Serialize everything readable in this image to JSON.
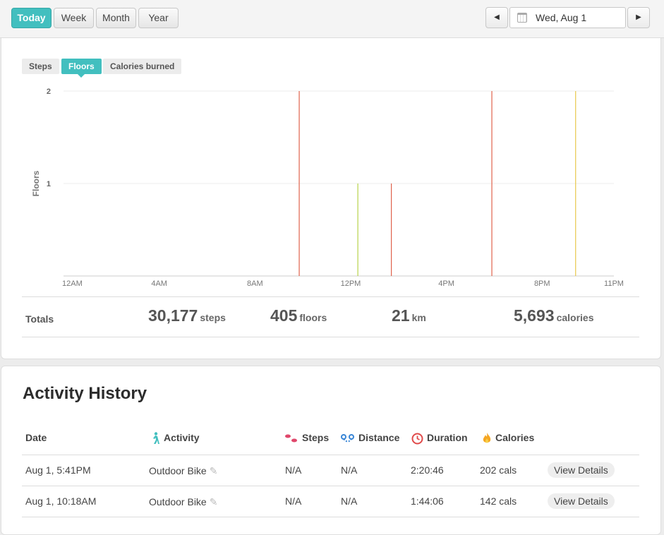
{
  "range_tabs": [
    {
      "label": "Today",
      "active": true
    },
    {
      "label": "Week",
      "active": false
    },
    {
      "label": "Month",
      "active": false
    },
    {
      "label": "Year",
      "active": false
    }
  ],
  "date_nav": {
    "prev": "◀",
    "next": "▶",
    "date": "Wed, Aug 1"
  },
  "metric_tabs": [
    {
      "label": "Steps",
      "active": false
    },
    {
      "label": "Floors",
      "active": true
    },
    {
      "label": "Calories burned",
      "active": false
    }
  ],
  "chart_data": {
    "type": "bar",
    "title": "",
    "ylabel": "Floors",
    "xlabel": "",
    "ylim": [
      0,
      2
    ],
    "yticks": [
      "1",
      "2"
    ],
    "x_tick_labels": [
      "12AM",
      "4AM",
      "8AM",
      "12PM",
      "4PM",
      "8PM",
      "11PM"
    ],
    "x_tick_hours": [
      0,
      4,
      8,
      12,
      16,
      20,
      23
    ],
    "bars": [
      {
        "hour": 9.85,
        "value": 2,
        "color": "#e0624c"
      },
      {
        "hour": 12.3,
        "value": 1,
        "color": "#b8d34a"
      },
      {
        "hour": 13.7,
        "value": 1,
        "color": "#e0624c"
      },
      {
        "hour": 17.9,
        "value": 2,
        "color": "#e0624c"
      },
      {
        "hour": 21.4,
        "value": 2,
        "color": "#e8c84a"
      }
    ]
  },
  "totals": {
    "label": "Totals",
    "steps": {
      "value": "30,177",
      "unit": "steps"
    },
    "floors": {
      "value": "405",
      "unit": "floors"
    },
    "distance": {
      "value": "21",
      "unit": "km"
    },
    "calories": {
      "value": "5,693",
      "unit": "calories"
    }
  },
  "history": {
    "title": "Activity History",
    "columns": {
      "date": "Date",
      "activity": "Activity",
      "steps": "Steps",
      "distance": "Distance",
      "duration": "Duration",
      "calories": "Calories"
    },
    "rows": [
      {
        "date": "Aug 1, 5:41PM",
        "activity": "Outdoor Bike",
        "steps": "N/A",
        "distance": "N/A",
        "duration": "2:20:46",
        "calories": "202 cals",
        "action": "View Details"
      },
      {
        "date": "Aug 1, 10:18AM",
        "activity": "Outdoor Bike",
        "steps": "N/A",
        "distance": "N/A",
        "duration": "1:44:06",
        "calories": "142 cals",
        "action": "View Details"
      }
    ]
  },
  "colors": {
    "accent": "#42bfbf",
    "chart_red": "#e0624c",
    "chart_green": "#b8d34a",
    "chart_yellow": "#e8c84a"
  }
}
